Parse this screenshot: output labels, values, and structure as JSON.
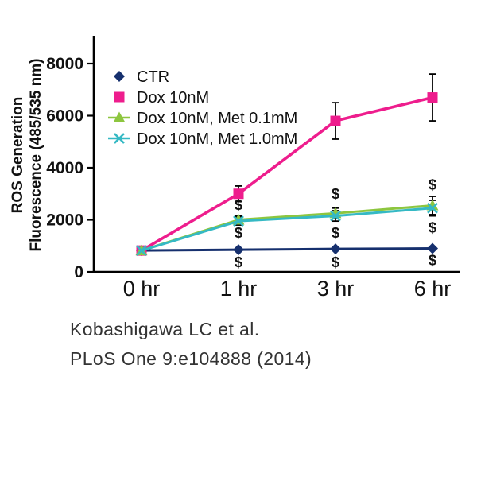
{
  "chart_data": {
    "type": "line",
    "title": "",
    "xlabel": "",
    "ylabel_line1": "ROS Generation",
    "ylabel_line2": "Fluorescence (485/535 nm)",
    "categories": [
      "0 hr",
      "1 hr",
      "3 hr",
      "6 hr"
    ],
    "ylim": [
      0,
      8000
    ],
    "yticks": [
      0,
      2000,
      4000,
      6000,
      8000
    ],
    "grid": false,
    "legend_position": "top-left",
    "series": [
      {
        "name": "CTR",
        "color": "#16306e",
        "marker": "diamond",
        "values": [
          820,
          850,
          880,
          900
        ],
        "errors": [
          0,
          0,
          0,
          0
        ]
      },
      {
        "name": "Dox 10nM",
        "color": "#ee1d8d",
        "marker": "square",
        "values": [
          820,
          3000,
          5800,
          6700
        ],
        "errors": [
          0,
          300,
          700,
          900
        ]
      },
      {
        "name": "Dox 10nM, Met 0.1mM",
        "color": "#8dc63f",
        "marker": "triangle",
        "values": [
          820,
          2000,
          2250,
          2550
        ],
        "errors": [
          0,
          150,
          200,
          350
        ]
      },
      {
        "name": "Dox 10nM, Met 1.0mM",
        "color": "#35b9c4",
        "marker": "x",
        "values": [
          820,
          1950,
          2150,
          2450
        ],
        "errors": [
          0,
          150,
          200,
          300
        ]
      }
    ],
    "annotations": [
      {
        "category_index": 1,
        "value": 2570,
        "text": "$"
      },
      {
        "category_index": 1,
        "value": 1500,
        "text": "$"
      },
      {
        "category_index": 1,
        "value": 370,
        "text": "$"
      },
      {
        "category_index": 2,
        "value": 3000,
        "text": "$"
      },
      {
        "category_index": 2,
        "value": 1500,
        "text": "$"
      },
      {
        "category_index": 2,
        "value": 370,
        "text": "$"
      },
      {
        "category_index": 3,
        "value": 3350,
        "text": "$"
      },
      {
        "category_index": 3,
        "value": 1700,
        "text": "$"
      },
      {
        "category_index": 3,
        "value": 450,
        "text": "$"
      }
    ]
  },
  "caption": {
    "line1": "Kobashigawa LC  et al.",
    "line2": "PLoS One 9:e104888 (2014)"
  }
}
